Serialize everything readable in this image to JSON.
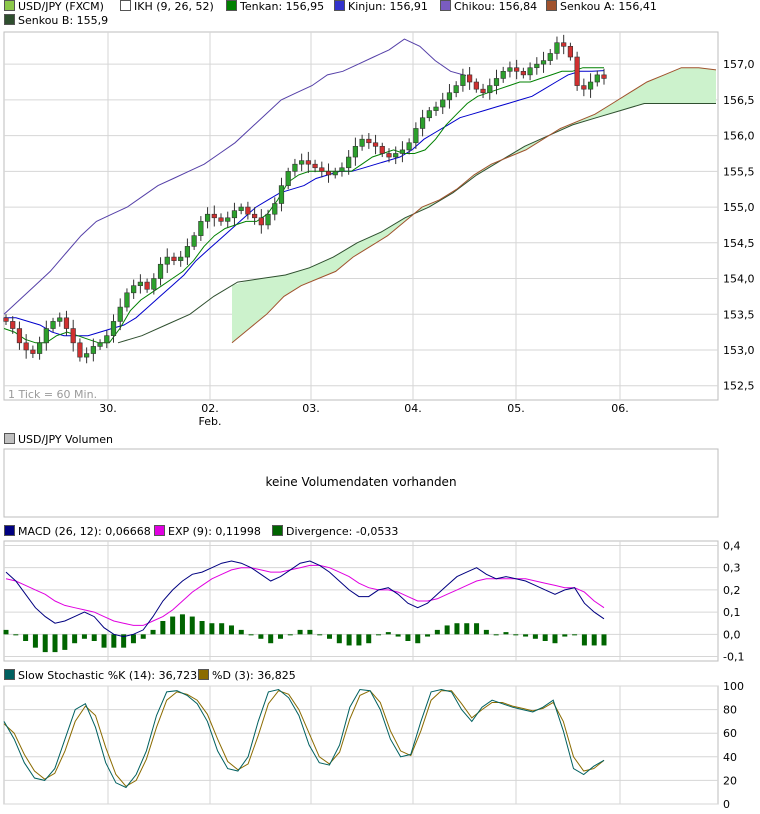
{
  "colors": {
    "tenkan": "#008000",
    "kinjun": "#0000cc",
    "chikou": "#5540a8",
    "senkouA": "#a0522d",
    "senkouB": "#2f4f2f",
    "cloud": "#ccf2cc",
    "up": "#2ca02c",
    "down": "#d03030",
    "macd": "#000080",
    "exp": "#e000e0",
    "divergence": "#006400",
    "k": "#006060",
    "d": "#8b6b00",
    "grid": "#d6d6d6"
  },
  "main": {
    "legend": [
      {
        "label": "USD/JPY (FXCM)",
        "swatch": "#8cc84b"
      },
      {
        "label": "IKH (9, 26, 52)",
        "swatch": "#ffffff"
      },
      {
        "label": "Tenkan: 156,95",
        "swatch": "#008000"
      },
      {
        "label": "Kinjun: 156,91",
        "swatch": "#3333cc"
      },
      {
        "label": "Chikou: 156,84",
        "swatch": "#7a5cc0"
      },
      {
        "label": "Senkou A: 156,41",
        "swatch": "#a0522d"
      },
      {
        "label": "Senkou B: 155,9",
        "swatch": "#2f4f2f"
      }
    ],
    "interval_note": "1 Tick = 60 Min."
  },
  "volume": {
    "title": "USD/JPY Volumen",
    "message": "keine Volumendaten vorhanden"
  },
  "macd": {
    "legend": [
      {
        "label": "MACD (26, 12): 0,06668",
        "swatch": "#000080"
      },
      {
        "label": "EXP (9): 0,11998",
        "swatch": "#e000e0"
      },
      {
        "label": "Divergence: -0,0533",
        "swatch": "#006400"
      }
    ]
  },
  "stoch": {
    "legend": [
      {
        "label": "Slow Stochastic %K (14): 36,723",
        "swatch": "#006060"
      },
      {
        "label": "%D (3): 36,825",
        "swatch": "#8b6b00"
      }
    ]
  },
  "chart_data": [
    {
      "type": "candlestick",
      "title": "USD/JPY (FXCM)",
      "x_ticks": [
        "30.",
        "02.",
        "03.",
        "04.",
        "05.",
        "06."
      ],
      "x_tick_sublabels": [
        "",
        "Feb.",
        "",
        "",
        "",
        ""
      ],
      "ylim": [
        152.3,
        157.45
      ],
      "y_ticks": [
        "152,5",
        "153,0",
        "153,5",
        "154,0",
        "154,5",
        "155,0",
        "155,5",
        "156,0",
        "156,5",
        "157,0"
      ],
      "y_tick_values": [
        152.5,
        153.0,
        153.5,
        154.0,
        154.5,
        155.0,
        155.5,
        156.0,
        156.5,
        157.0
      ],
      "close_series": [
        153.4,
        153.3,
        153.1,
        153.0,
        152.95,
        153.1,
        153.3,
        153.4,
        153.45,
        153.3,
        153.1,
        152.9,
        152.95,
        153.05,
        153.1,
        153.2,
        153.4,
        153.6,
        153.8,
        153.9,
        153.95,
        153.85,
        154.0,
        154.2,
        154.3,
        154.25,
        154.3,
        154.45,
        154.6,
        154.8,
        154.9,
        154.85,
        154.8,
        154.85,
        154.95,
        155.0,
        154.9,
        154.85,
        154.75,
        154.9,
        155.05,
        155.3,
        155.5,
        155.6,
        155.65,
        155.6,
        155.55,
        155.5,
        155.45,
        155.5,
        155.55,
        155.7,
        155.85,
        155.95,
        155.9,
        155.85,
        155.75,
        155.7,
        155.75,
        155.8,
        155.9,
        156.1,
        156.25,
        156.35,
        156.4,
        156.5,
        156.6,
        156.7,
        156.85,
        156.75,
        156.65,
        156.6,
        156.7,
        156.8,
        156.9,
        156.95,
        156.9,
        156.85,
        156.95,
        157.0,
        157.05,
        157.15,
        157.3,
        157.25,
        157.1,
        156.7,
        156.65,
        156.75,
        156.85,
        156.8
      ],
      "tenkan": [
        153.3,
        153.25,
        153.15,
        153.1,
        153.1,
        153.2,
        153.25,
        153.2,
        153.15,
        153.1,
        153.1,
        153.3,
        153.55,
        153.7,
        153.8,
        153.9,
        154.0,
        154.1,
        154.25,
        154.45,
        154.6,
        154.7,
        154.75,
        154.8,
        154.8,
        154.9,
        155.1,
        155.35,
        155.45,
        155.5,
        155.5,
        155.5,
        155.5,
        155.5,
        155.6,
        155.7,
        155.75,
        155.8,
        155.75,
        155.75,
        155.8,
        155.95,
        156.15,
        156.3,
        156.45,
        156.55,
        156.6,
        156.65,
        156.7,
        156.75,
        156.75,
        156.8,
        156.85,
        156.9,
        156.9,
        156.95,
        156.95,
        156.95
      ],
      "kinjun": [
        153.45,
        153.45,
        153.4,
        153.35,
        153.25,
        153.2,
        153.2,
        153.2,
        153.25,
        153.3,
        153.35,
        153.45,
        153.6,
        153.75,
        153.9,
        154.05,
        154.25,
        154.4,
        154.55,
        154.7,
        154.85,
        155.0,
        155.1,
        155.2,
        155.25,
        155.3,
        155.4,
        155.45,
        155.5,
        155.5,
        155.55,
        155.6,
        155.65,
        155.7,
        155.8,
        155.95,
        156.05,
        156.15,
        156.25,
        156.3,
        156.35,
        156.4,
        156.45,
        156.5,
        156.55,
        156.65,
        156.75,
        156.85,
        156.9,
        156.9,
        156.91
      ],
      "chikou": [
        153.5,
        153.7,
        153.9,
        154.1,
        154.35,
        154.6,
        154.8,
        154.9,
        155.0,
        155.15,
        155.3,
        155.4,
        155.5,
        155.6,
        155.75,
        155.9,
        156.1,
        156.3,
        156.5,
        156.6,
        156.7,
        156.85,
        156.9,
        157.0,
        157.1,
        157.2,
        157.35,
        157.25,
        157.05,
        156.9,
        156.84
      ],
      "senkou_a": [
        153.1,
        153.3,
        153.5,
        153.75,
        153.9,
        154.0,
        154.1,
        154.3,
        154.45,
        154.6,
        154.8,
        155.0,
        155.1,
        155.25,
        155.45,
        155.6,
        155.7,
        155.8,
        155.95,
        156.1,
        156.2,
        156.3,
        156.45,
        156.6,
        156.75,
        156.85,
        156.95,
        156.95,
        156.92
      ],
      "senkou_b": [
        153.1,
        153.2,
        153.35,
        153.5,
        153.75,
        153.95,
        154.0,
        154.05,
        154.15,
        154.3,
        154.5,
        154.65,
        154.85,
        155.0,
        155.2,
        155.45,
        155.65,
        155.85,
        156.0,
        156.15,
        156.25,
        156.35,
        156.45,
        156.45,
        156.45,
        156.45
      ]
    },
    {
      "type": "line",
      "title": "MACD",
      "ylim": [
        -0.12,
        0.42
      ],
      "y_ticks": [
        "0,4",
        "0,3",
        "0,2",
        "0,1",
        "0,0",
        "-0,1"
      ],
      "y_tick_values": [
        0.4,
        0.3,
        0.2,
        0.1,
        0.0,
        -0.1
      ],
      "series": [
        {
          "name": "MACD (26, 12)",
          "values": [
            0.28,
            0.24,
            0.18,
            0.12,
            0.08,
            0.05,
            0.06,
            0.08,
            0.1,
            0.08,
            0.03,
            0.0,
            -0.01,
            0.0,
            0.02,
            0.08,
            0.15,
            0.2,
            0.24,
            0.27,
            0.28,
            0.3,
            0.32,
            0.33,
            0.32,
            0.3,
            0.27,
            0.24,
            0.26,
            0.29,
            0.32,
            0.33,
            0.31,
            0.28,
            0.24,
            0.2,
            0.17,
            0.17,
            0.2,
            0.21,
            0.18,
            0.14,
            0.12,
            0.14,
            0.18,
            0.22,
            0.26,
            0.28,
            0.3,
            0.27,
            0.25,
            0.26,
            0.25,
            0.24,
            0.22,
            0.2,
            0.18,
            0.2,
            0.21,
            0.14,
            0.1,
            0.07
          ]
        },
        {
          "name": "EXP (9)",
          "values": [
            0.25,
            0.24,
            0.22,
            0.2,
            0.18,
            0.15,
            0.13,
            0.12,
            0.11,
            0.1,
            0.08,
            0.06,
            0.05,
            0.04,
            0.04,
            0.06,
            0.08,
            0.11,
            0.15,
            0.19,
            0.22,
            0.25,
            0.27,
            0.29,
            0.3,
            0.3,
            0.29,
            0.28,
            0.28,
            0.29,
            0.3,
            0.31,
            0.31,
            0.3,
            0.28,
            0.26,
            0.23,
            0.21,
            0.2,
            0.2,
            0.19,
            0.17,
            0.15,
            0.15,
            0.16,
            0.18,
            0.2,
            0.22,
            0.24,
            0.25,
            0.25,
            0.25,
            0.25,
            0.25,
            0.24,
            0.23,
            0.22,
            0.21,
            0.21,
            0.19,
            0.15,
            0.12
          ]
        },
        {
          "name": "Divergence",
          "values": [
            0.02,
            0.0,
            -0.03,
            -0.06,
            -0.08,
            -0.08,
            -0.07,
            -0.04,
            -0.02,
            -0.03,
            -0.06,
            -0.06,
            -0.06,
            -0.04,
            -0.02,
            0.02,
            0.06,
            0.08,
            0.09,
            0.08,
            0.06,
            0.05,
            0.05,
            0.04,
            0.02,
            0.0,
            -0.02,
            -0.04,
            -0.02,
            0.0,
            0.02,
            0.02,
            0.0,
            -0.02,
            -0.04,
            -0.05,
            -0.05,
            -0.04,
            0.0,
            0.01,
            -0.01,
            -0.03,
            -0.04,
            -0.01,
            0.02,
            0.04,
            0.05,
            0.05,
            0.05,
            0.02,
            0.0,
            0.01,
            0.0,
            -0.01,
            -0.02,
            -0.03,
            -0.04,
            -0.01,
            0.0,
            -0.05,
            -0.05,
            -0.05
          ]
        }
      ]
    },
    {
      "type": "line",
      "title": "Slow Stochastic",
      "ylim": [
        0,
        100
      ],
      "y_ticks": [
        "100",
        "80",
        "60",
        "40",
        "20",
        "0"
      ],
      "y_tick_values": [
        100,
        80,
        60,
        40,
        20,
        0
      ],
      "series": [
        {
          "name": "Slow Stochastic %K (14)",
          "values": [
            70,
            55,
            35,
            22,
            20,
            30,
            55,
            80,
            85,
            65,
            35,
            18,
            14,
            25,
            45,
            75,
            95,
            96,
            92,
            85,
            70,
            45,
            30,
            28,
            40,
            70,
            95,
            97,
            90,
            75,
            50,
            35,
            33,
            50,
            82,
            97,
            96,
            80,
            55,
            40,
            42,
            70,
            95,
            97,
            95,
            80,
            70,
            82,
            88,
            85,
            82,
            80,
            78,
            82,
            88,
            62,
            30,
            25,
            32,
            37
          ]
        },
        {
          "name": "%D (3)",
          "values": [
            68,
            60,
            42,
            28,
            21,
            26,
            45,
            70,
            83,
            75,
            48,
            25,
            15,
            20,
            38,
            65,
            88,
            95,
            93,
            88,
            76,
            55,
            36,
            29,
            34,
            58,
            85,
            96,
            93,
            80,
            60,
            40,
            34,
            44,
            72,
            92,
            96,
            86,
            62,
            45,
            41,
            62,
            88,
            96,
            96,
            85,
            73,
            80,
            86,
            86,
            83,
            81,
            79,
            81,
            86,
            70,
            40,
            28,
            30,
            37
          ]
        }
      ]
    }
  ]
}
